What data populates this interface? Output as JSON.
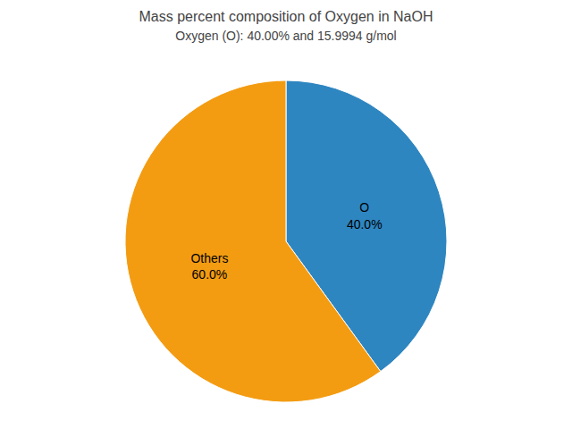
{
  "chart_data": {
    "type": "pie",
    "title": "Mass percent composition of Oxygen in NaOH",
    "subtitle": "Oxygen (O): 40.00% and 15.9994 g/mol",
    "categories": [
      "O",
      "Others"
    ],
    "values": [
      40.0,
      60.0
    ],
    "value_labels": [
      "40.0%",
      "60.0%"
    ],
    "colors": [
      "#2e86c1",
      "#f39c12"
    ],
    "data_labels": true
  }
}
